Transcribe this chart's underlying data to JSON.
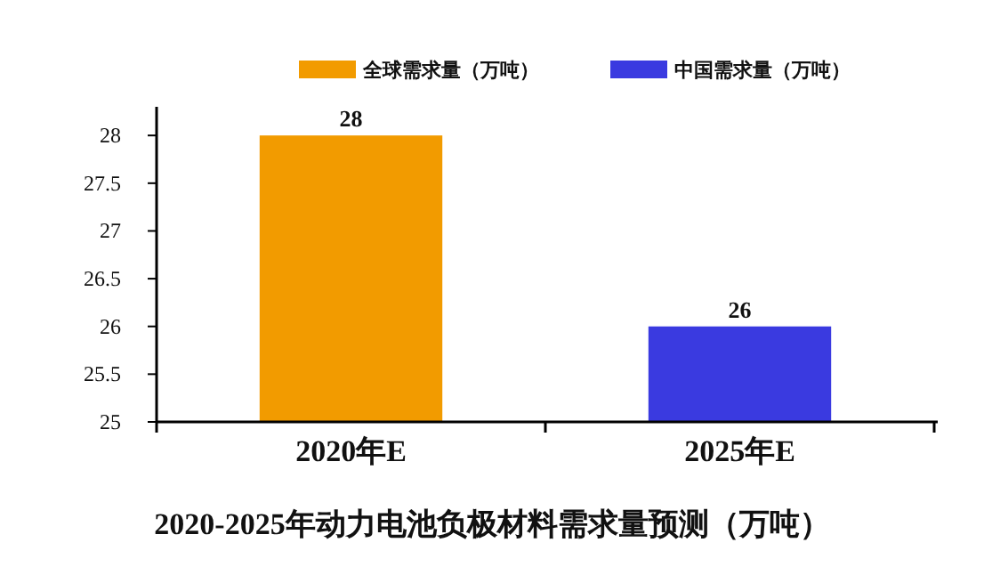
{
  "chart_data": {
    "type": "bar",
    "title": "2020-2025年动力电池负极材料需求量预测（万吨）",
    "categories": [
      "2020年E",
      "2025年E"
    ],
    "series": [
      {
        "name": "全球需求量（万吨）",
        "color": "#f29b00",
        "values": [
          28,
          null
        ]
      },
      {
        "name": "中国需求量（万吨）",
        "color": "#3a3ae0",
        "values": [
          null,
          26
        ]
      }
    ],
    "ylim": [
      25,
      28.3
    ],
    "yticks": [
      25,
      25.5,
      26,
      26.5,
      27,
      27.5,
      28
    ],
    "data_labels": true,
    "legend": "top right",
    "grid": false
  }
}
